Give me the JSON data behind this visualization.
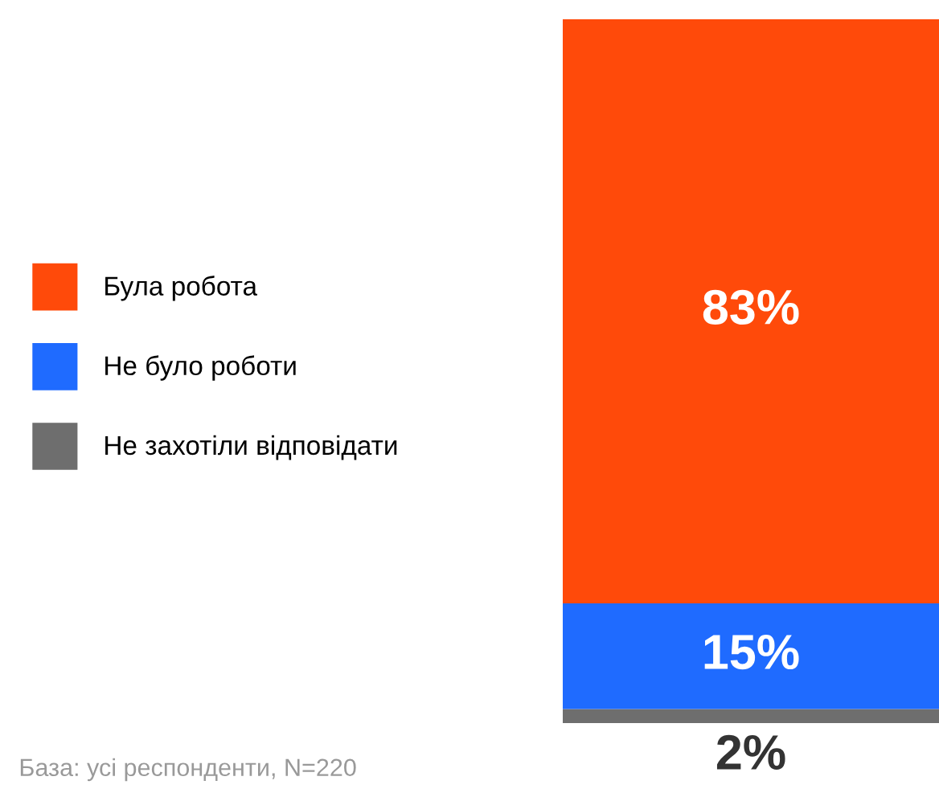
{
  "chart_data": {
    "type": "bar",
    "stacked": true,
    "categories": [
      null
    ],
    "series": [
      {
        "name": "Не захотіли відповідати",
        "color": "#6e6e6e",
        "values": [
          2
        ],
        "value_labels": [
          "2%"
        ]
      },
      {
        "name": "Не було роботи",
        "color": "#1f6bff",
        "values": [
          15
        ],
        "value_labels": [
          "15%"
        ]
      },
      {
        "name": "Була робота",
        "color": "#ff4a0a",
        "values": [
          83
        ],
        "value_labels": [
          "83%"
        ]
      }
    ],
    "legend": "left",
    "tick_labels": false,
    "annotations": [
      "База: усі респонденти, N=220"
    ]
  }
}
